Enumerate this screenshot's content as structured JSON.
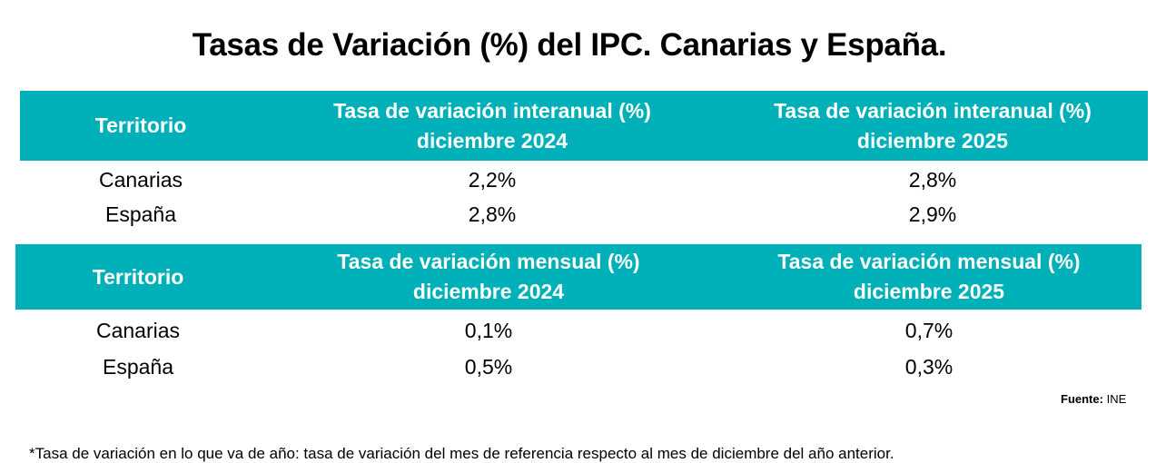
{
  "title": "Tasas de Variación (%) del IPC. Canarias y España.",
  "table_interanual": {
    "headers": {
      "territorio": "Territorio",
      "col1_line1": "Tasa de variación interanual (%)",
      "col1_line2": "diciembre  2024",
      "col2_line1": "Tasa de variación interanual (%)",
      "col2_line2": "diciembre 2025"
    },
    "rows": [
      {
        "territorio": "Canarias",
        "v2024": "2,2%",
        "v2025": "2,8%"
      },
      {
        "territorio": "España",
        "v2024": "2,8%",
        "v2025": "2,9%"
      }
    ]
  },
  "table_mensual": {
    "headers": {
      "territorio": "Territorio",
      "col1_line1": "Tasa de variación mensual (%)",
      "col1_line2": "diciembre 2024",
      "col2_line1": "Tasa de variación mensual (%)",
      "col2_line2": "diciembre 2025"
    },
    "rows": [
      {
        "territorio": "Canarias",
        "v2024": "0,1%",
        "v2025": "0,7%"
      },
      {
        "territorio": "España",
        "v2024": "0,5%",
        "v2025": "0,3%"
      }
    ]
  },
  "source": {
    "label": "Fuente:",
    "value": "INE"
  },
  "footnote": "*Tasa de variación en lo que va de año: tasa de variación del mes de referencia respecto al mes de diciembre del año anterior."
}
